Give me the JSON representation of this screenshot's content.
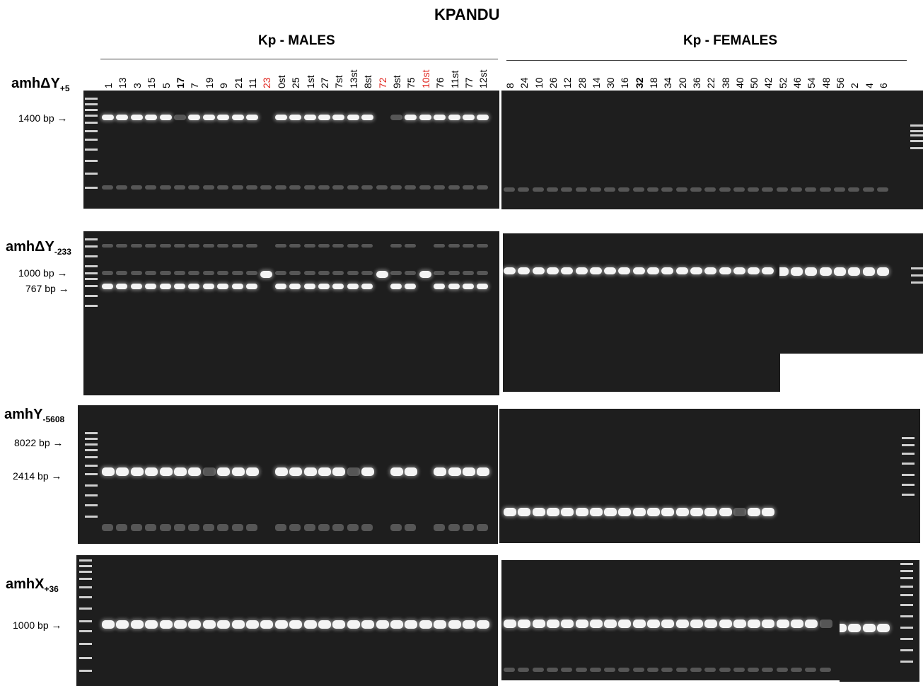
{
  "title": "KPANDU",
  "groups": {
    "males": "Kp - MALES",
    "females": "Kp - FEMALES"
  },
  "male_lanes": [
    {
      "label": "1",
      "style": "normal"
    },
    {
      "label": "13",
      "style": "normal"
    },
    {
      "label": "3",
      "style": "normal"
    },
    {
      "label": "15",
      "style": "normal"
    },
    {
      "label": "5",
      "style": "normal"
    },
    {
      "label": "17",
      "style": "bold"
    },
    {
      "label": "7",
      "style": "normal"
    },
    {
      "label": "19",
      "style": "normal"
    },
    {
      "label": "9",
      "style": "normal"
    },
    {
      "label": "21",
      "style": "normal"
    },
    {
      "label": "11",
      "style": "normal"
    },
    {
      "label": "23",
      "style": "red"
    },
    {
      "label": "0st",
      "style": "normal"
    },
    {
      "label": "25",
      "style": "normal"
    },
    {
      "label": "1st",
      "style": "normal"
    },
    {
      "label": "27",
      "style": "normal"
    },
    {
      "label": "7st",
      "style": "normal"
    },
    {
      "label": "13st",
      "style": "normal"
    },
    {
      "label": "8st",
      "style": "normal"
    },
    {
      "label": "72",
      "style": "red"
    },
    {
      "label": "9st",
      "style": "normal"
    },
    {
      "label": "75",
      "style": "normal"
    },
    {
      "label": "10st",
      "style": "red"
    },
    {
      "label": "76",
      "style": "normal"
    },
    {
      "label": "11st",
      "style": "normal"
    },
    {
      "label": "77",
      "style": "normal"
    },
    {
      "label": "12st",
      "style": "normal"
    }
  ],
  "female_lanes": [
    {
      "label": "8",
      "style": "normal"
    },
    {
      "label": "24",
      "style": "normal"
    },
    {
      "label": "10",
      "style": "normal"
    },
    {
      "label": "26",
      "style": "normal"
    },
    {
      "label": "12",
      "style": "normal"
    },
    {
      "label": "28",
      "style": "normal"
    },
    {
      "label": "14",
      "style": "normal"
    },
    {
      "label": "30",
      "style": "normal"
    },
    {
      "label": "16",
      "style": "normal"
    },
    {
      "label": "32",
      "style": "bold"
    },
    {
      "label": "18",
      "style": "normal"
    },
    {
      "label": "34",
      "style": "normal"
    },
    {
      "label": "20",
      "style": "normal"
    },
    {
      "label": "36",
      "style": "normal"
    },
    {
      "label": "22",
      "style": "normal"
    },
    {
      "label": "38",
      "style": "normal"
    },
    {
      "label": "40",
      "style": "normal"
    },
    {
      "label": "50",
      "style": "normal"
    },
    {
      "label": "42",
      "style": "normal"
    },
    {
      "label": "52",
      "style": "normal"
    },
    {
      "label": "46",
      "style": "normal"
    },
    {
      "label": "54",
      "style": "normal"
    },
    {
      "label": "48",
      "style": "normal"
    },
    {
      "label": "56",
      "style": "normal"
    },
    {
      "label": "2",
      "style": "normal"
    },
    {
      "label": "4",
      "style": "normal"
    },
    {
      "label": "6",
      "style": "normal"
    }
  ],
  "markers": [
    {
      "gene": "amhΔY",
      "sub": "+5",
      "sizes": [
        "1400 bp"
      ]
    },
    {
      "gene": "amhΔY",
      "sub": "-233",
      "sizes": [
        "1000 bp",
        "767 bp"
      ]
    },
    {
      "gene": "amhY",
      "sub": "-5608",
      "sizes": [
        "8022 bp",
        "2414 bp"
      ]
    },
    {
      "gene": "amhX",
      "sub": "+36",
      "sizes": [
        "1000 bp"
      ]
    }
  ],
  "arrow_glyph": "→",
  "colors": {
    "red_label": "#e0231c",
    "gel": "#1e1e1e",
    "band": "#f4f4f4"
  }
}
